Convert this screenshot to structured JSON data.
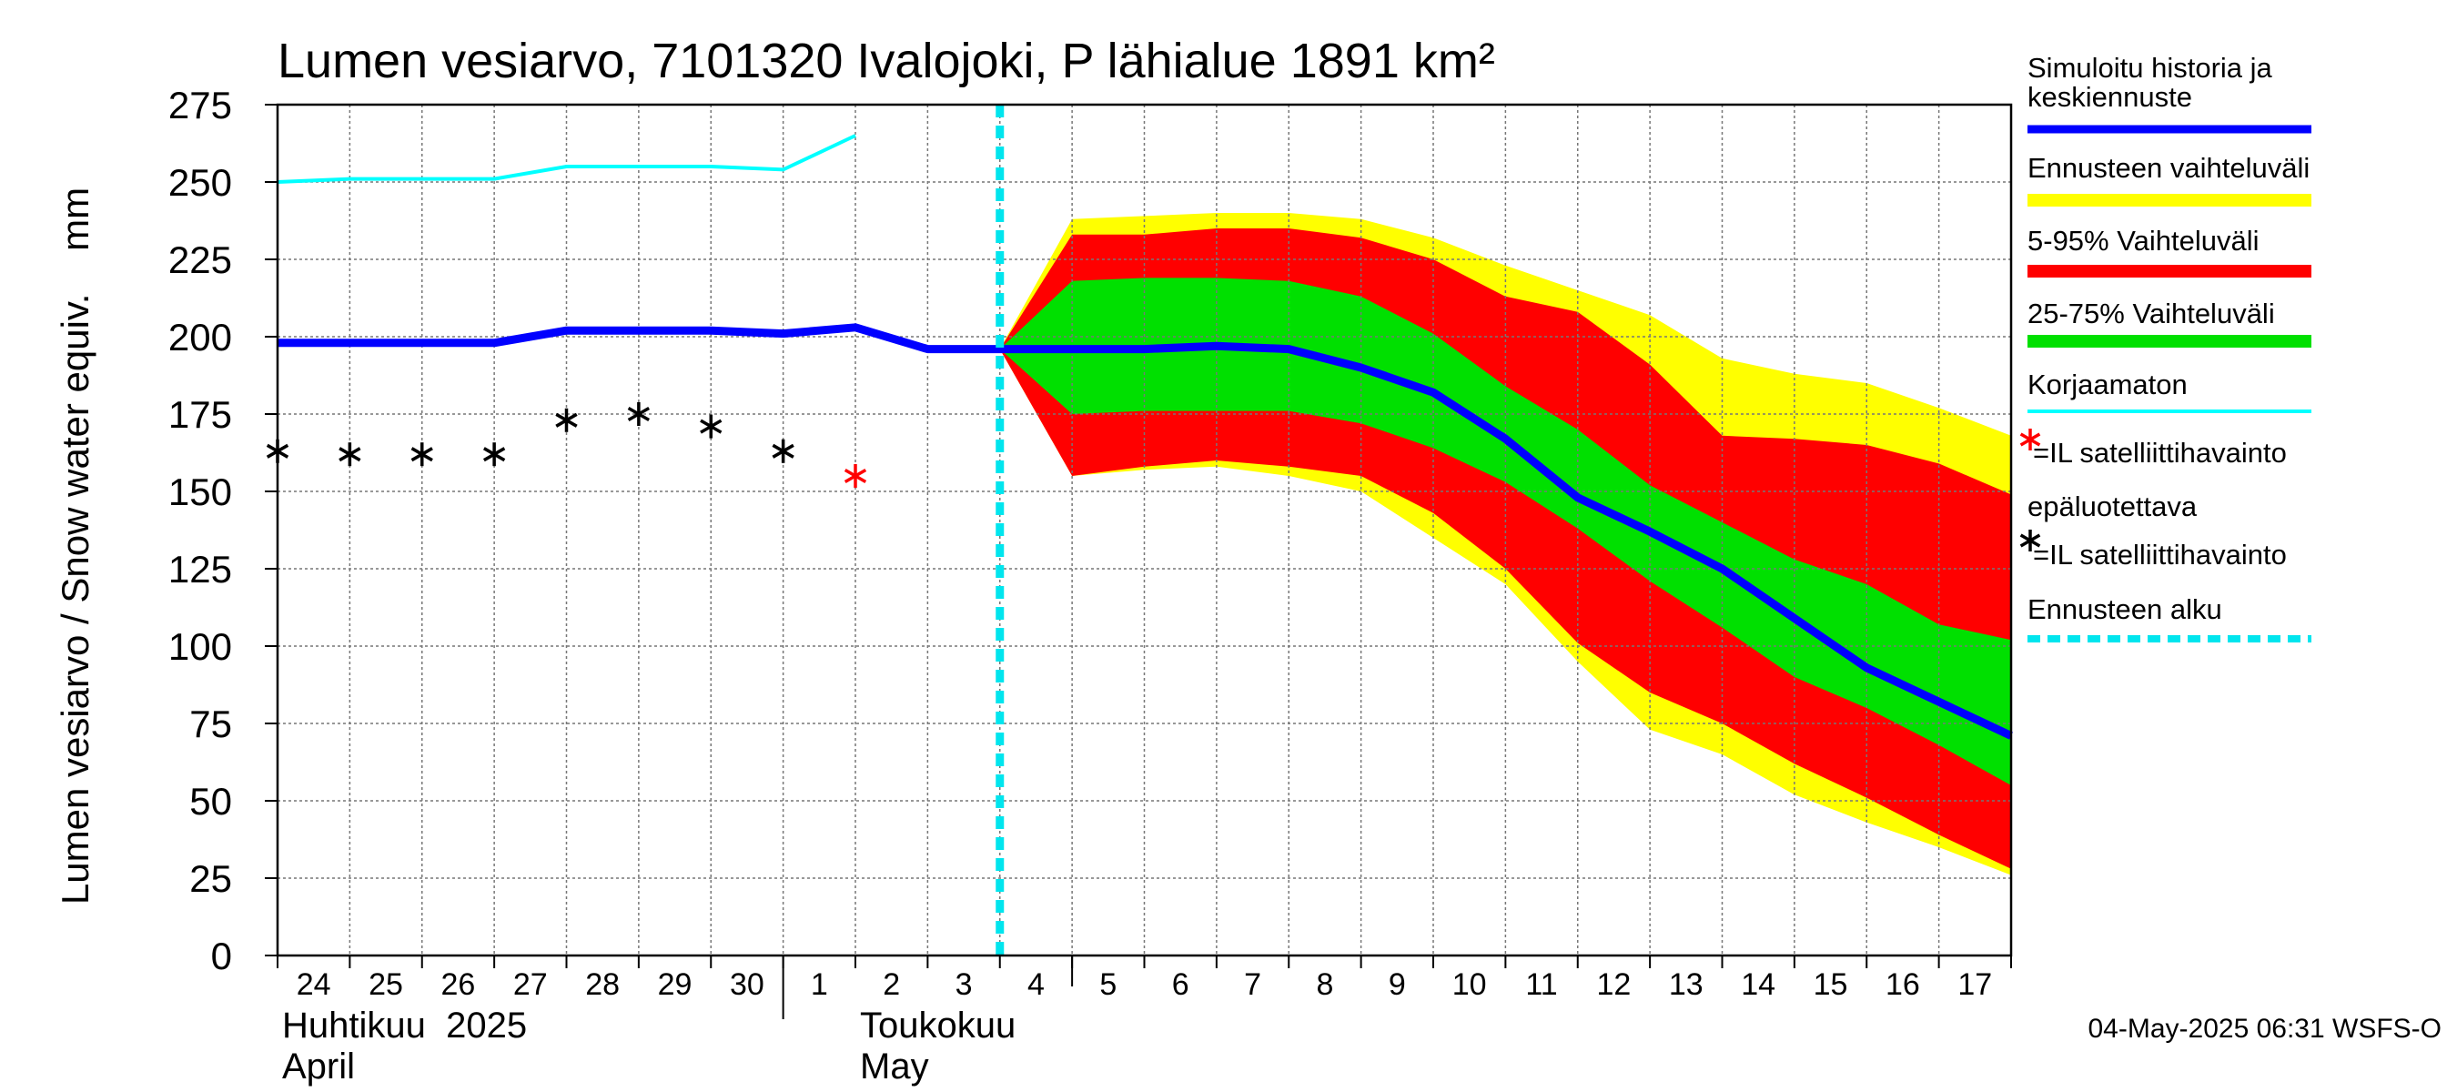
{
  "chart_data": {
    "type": "area",
    "title": "Lumen vesiarvo, 7101320 Ivalojoki, P lähialue 1891 km²",
    "ylabel": "Lumen vesiarvo / Snow water equiv.    mm",
    "ylim": [
      0,
      275
    ],
    "yticks": [
      0,
      25,
      50,
      75,
      100,
      125,
      150,
      175,
      200,
      225,
      250,
      275
    ],
    "xlim": [
      0,
      24
    ],
    "x_tick_labels": [
      "24",
      "25",
      "26",
      "27",
      "28",
      "29",
      "30",
      "1",
      "2",
      "3",
      "4",
      "5",
      "6",
      "7",
      "8",
      "9",
      "10",
      "11",
      "12",
      "13",
      "14",
      "15",
      "16",
      "17"
    ],
    "month_labels": [
      {
        "line1": "Huhtikuu  2025",
        "line2": "April",
        "x": 0
      },
      {
        "line1": "Toukokuu",
        "line2": "May",
        "x": 8
      }
    ],
    "month_separators": [
      7,
      11
    ],
    "forecast_start": 10,
    "grid": true,
    "series": {
      "band_outer": {
        "name": "Ennusteen vaihteluväli",
        "color": "#ffff00",
        "x": [
          10,
          11,
          12,
          13,
          14,
          15,
          16,
          17,
          18,
          19,
          20,
          21,
          22,
          23,
          24
        ],
        "upper": [
          196,
          238,
          239,
          240,
          240,
          238,
          232,
          223,
          215,
          207,
          193,
          188,
          185,
          177,
          168
        ],
        "lower": [
          196,
          155,
          157,
          158,
          155,
          150,
          135,
          120,
          95,
          73,
          65,
          52,
          43,
          35,
          26
        ]
      },
      "band_5_95": {
        "name": "5-95% Vaihteluväli",
        "color": "#ff0000",
        "x": [
          10,
          11,
          12,
          13,
          14,
          15,
          16,
          17,
          18,
          19,
          20,
          21,
          22,
          23,
          24
        ],
        "upper": [
          196,
          233,
          233,
          235,
          235,
          232,
          225,
          213,
          208,
          191,
          168,
          167,
          165,
          159,
          149
        ],
        "lower": [
          196,
          155,
          158,
          160,
          158,
          155,
          143,
          125,
          101,
          85,
          75,
          62,
          51,
          39,
          28
        ]
      },
      "band_25_75": {
        "name": "25-75% Vaihteluväli",
        "color": "#00e000",
        "x": [
          10,
          11,
          12,
          13,
          14,
          15,
          16,
          17,
          18,
          19,
          20,
          21,
          22,
          23,
          24
        ],
        "upper": [
          196,
          218,
          219,
          219,
          218,
          213,
          201,
          184,
          170,
          152,
          140,
          128,
          120,
          107,
          102
        ],
        "lower": [
          196,
          175,
          176,
          176,
          176,
          172,
          164,
          153,
          138,
          121,
          106,
          90,
          80,
          68,
          55
        ]
      },
      "median": {
        "name": "Simuloitu historia ja keskiennuste",
        "color": "#0000ff",
        "x": [
          0,
          1,
          2,
          3,
          4,
          5,
          6,
          7,
          8,
          9,
          10,
          11,
          12,
          13,
          14,
          15,
          16,
          17,
          18,
          19,
          20,
          21,
          22,
          23,
          24
        ],
        "y": [
          198,
          198,
          198,
          198,
          202,
          202,
          202,
          201,
          203,
          196,
          196,
          196,
          196,
          197,
          196,
          190,
          182,
          167,
          148,
          137,
          125,
          109,
          93,
          82,
          71
        ]
      },
      "uncorrected": {
        "name": "Korjaamaton",
        "color": "#00ffff",
        "x": [
          0,
          1,
          2,
          3,
          4,
          5,
          6,
          7,
          8
        ],
        "y": [
          250,
          251,
          251,
          251,
          255,
          255,
          255,
          254,
          265
        ]
      },
      "satellite_obs": {
        "name": "=IL satelliittihavainto",
        "color": "#000000",
        "x": [
          0,
          1,
          2,
          3,
          4,
          5,
          6,
          7
        ],
        "y": [
          163,
          162,
          162,
          162,
          173,
          175,
          171,
          163
        ]
      },
      "satellite_obs_unreliable": {
        "name": "=IL satelliittihavainto epäluotettava",
        "color": "#ff0000",
        "x": [
          8
        ],
        "y": [
          155
        ]
      }
    }
  },
  "legend": {
    "items": [
      {
        "key": "median",
        "line1": "Simuloitu historia ja",
        "line2": "keskiennuste",
        "color": "#0000ff",
        "style": "line"
      },
      {
        "key": "band_outer",
        "line1": "Ennusteen vaihteluväli",
        "color": "#ffff00",
        "style": "bar"
      },
      {
        "key": "band_5_95",
        "line1": "5-95% Vaihteluväli",
        "color": "#ff0000",
        "style": "bar"
      },
      {
        "key": "band_25_75",
        "line1": "25-75% Vaihteluväli",
        "color": "#00e000",
        "style": "bar"
      },
      {
        "key": "uncorrected",
        "line1": "Korjaamaton",
        "color": "#00ffff",
        "style": "thin"
      },
      {
        "key": "sat_unreliable",
        "line1": "=IL satelliittihavainto",
        "line2": "epäluotettava",
        "color": "#ff0000",
        "style": "star"
      },
      {
        "key": "sat",
        "line1": "=IL satelliittihavainto",
        "color": "#000000",
        "style": "star"
      },
      {
        "key": "forecast_start",
        "line1": "Ennusteen alku",
        "color": "#00e5ee",
        "style": "dashed"
      }
    ]
  },
  "timestamp": "04-May-2025 06:31 WSFS-O"
}
